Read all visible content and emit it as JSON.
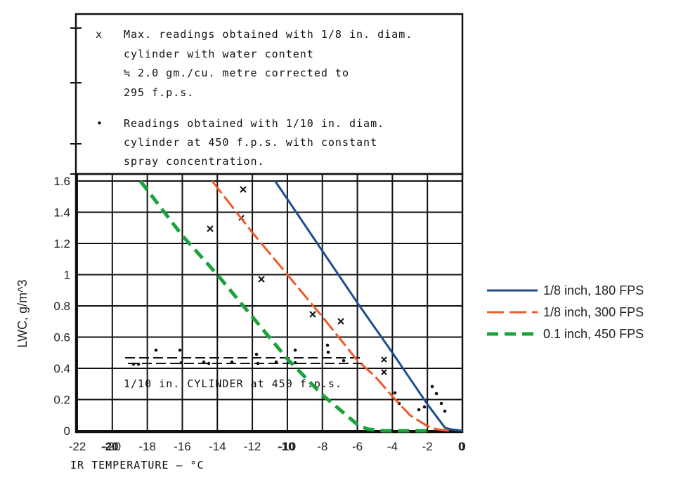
{
  "colors": {
    "series_blue": "#1f4e8c",
    "series_orange": "#f05a28",
    "series_green": "#1aa33a",
    "scan_ink": "#111111"
  },
  "figure_text": {
    "note1_marker": "x",
    "note1_lines": [
      "Max. readings obtained with 1/8 in. diam.",
      "cylinder with water content",
      "≒ 2.0 gm./cu. metre corrected to",
      "295 f.p.s."
    ],
    "note2_marker": "•",
    "note2_lines": [
      "Readings obtained with 1/10 in. diam.",
      "cylinder at 450 f.p.s. with constant",
      "spray concentration."
    ],
    "band_label": "1/10 in. CYLINDER at 450 f.p.s.",
    "old_xlabel": "IR TEMPERATURE — °C",
    "old_xticks": [
      "-20",
      "-10",
      "0"
    ]
  },
  "chart_data": {
    "type": "line",
    "ylabel": "LWC, g/m^3",
    "xlabel": "",
    "xlim": [
      -22,
      0
    ],
    "ylim": [
      0,
      1.6
    ],
    "xticks": [
      -22,
      -20,
      -18,
      -16,
      -14,
      -12,
      -10,
      -8,
      -6,
      -4,
      -2,
      0
    ],
    "yticks": [
      0,
      0.2,
      0.4,
      0.6,
      0.8,
      1,
      1.2,
      1.4,
      1.6
    ],
    "legend_position": "right",
    "series": [
      {
        "name": "1/8 inch, 180 FPS",
        "style": "solid",
        "color": "#1f4e8c",
        "x": [
          -10.7,
          -6.0,
          -4.0,
          -2.0,
          -1.0,
          -0.7,
          0.0
        ],
        "y": [
          1.6,
          0.82,
          0.5,
          0.17,
          0.02,
          0.01,
          0.0
        ]
      },
      {
        "name": "1/8 inch, 300 FPS",
        "style": "dashed",
        "color": "#f05a28",
        "x": [
          -14.3,
          -12.0,
          -10.0,
          -8.0,
          -6.0,
          -5.0,
          -4.0,
          -3.0,
          -2.0,
          -1.5,
          -0.7
        ],
        "y": [
          1.6,
          1.27,
          1.0,
          0.73,
          0.45,
          0.35,
          0.22,
          0.1,
          0.03,
          0.01,
          0.0
        ]
      },
      {
        "name": "0.1 inch, 450 FPS",
        "style": "dashed",
        "color": "#1aa33a",
        "x": [
          -18.4,
          -16.0,
          -14.0,
          -12.0,
          -10.0,
          -8.0,
          -6.0,
          -5.4,
          -4.5,
          -4.0,
          -2.0
        ],
        "y": [
          1.6,
          1.25,
          1.0,
          0.73,
          0.46,
          0.23,
          0.04,
          0.01,
          0.0,
          0.0,
          0.0
        ]
      }
    ]
  }
}
